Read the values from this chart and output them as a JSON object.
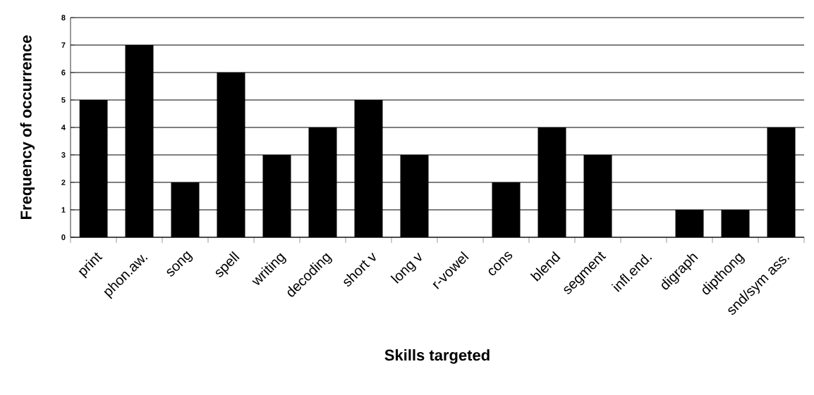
{
  "chart_data": {
    "type": "bar",
    "xlabel": "Skills targeted",
    "ylabel": "Frequency of occurrence",
    "categories": [
      "print",
      "phon.aw.",
      "song",
      "spell",
      "writing",
      "decoding",
      "short v",
      "long v",
      "r-vowel",
      "cons",
      "blend",
      "segment",
      "infl.end.",
      "digraph",
      "dipthong",
      "snd/sym ass."
    ],
    "values": [
      5,
      7,
      2,
      6,
      3,
      4,
      5,
      3,
      0,
      2,
      4,
      3,
      0,
      1,
      1,
      4
    ],
    "color": "#000000",
    "ylim": [
      0,
      8
    ],
    "yticks": [
      0,
      1,
      2,
      3,
      4,
      5,
      6,
      7,
      8
    ],
    "grid": "y"
  }
}
